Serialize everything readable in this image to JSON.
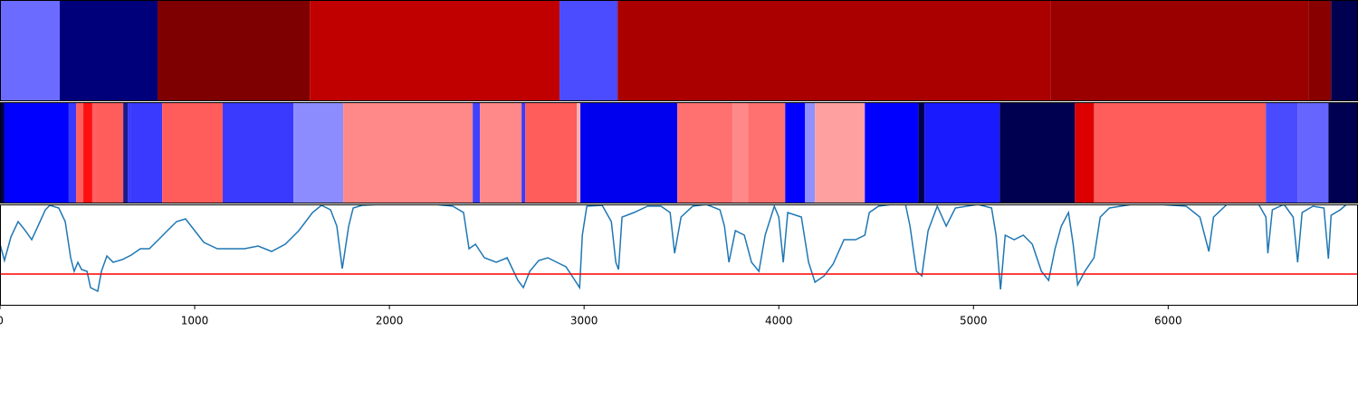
{
  "chart_data": [
    {
      "type": "segments",
      "xlim": [
        0,
        6975
      ],
      "segments": [
        {
          "start": 0,
          "end": 307,
          "color": "#6b6bff"
        },
        {
          "start": 307,
          "end": 809,
          "color": "#00007a"
        },
        {
          "start": 809,
          "end": 1591,
          "color": "#7f0000"
        },
        {
          "start": 1591,
          "end": 2874,
          "color": "#c00000"
        },
        {
          "start": 2874,
          "end": 3172,
          "color": "#4b4bff"
        },
        {
          "start": 3172,
          "end": 5395,
          "color": "#aa0000"
        },
        {
          "start": 5395,
          "end": 6721,
          "color": "#9a0000"
        },
        {
          "start": 6721,
          "end": 6837,
          "color": "#880000"
        },
        {
          "start": 6837,
          "end": 6975,
          "color": "#000050"
        }
      ]
    },
    {
      "type": "segments",
      "xlim": [
        0,
        6975
      ],
      "segments": [
        {
          "start": 0,
          "end": 23,
          "color": "#000050"
        },
        {
          "start": 23,
          "end": 353,
          "color": "#0000ff"
        },
        {
          "start": 353,
          "end": 391,
          "color": "#3a3aff"
        },
        {
          "start": 391,
          "end": 428,
          "color": "#ff6060"
        },
        {
          "start": 428,
          "end": 474,
          "color": "#ff1010"
        },
        {
          "start": 474,
          "end": 493,
          "color": "#ff6060"
        },
        {
          "start": 493,
          "end": 633,
          "color": "#ff5c5c"
        },
        {
          "start": 633,
          "end": 656,
          "color": "#1a1a8a"
        },
        {
          "start": 656,
          "end": 674,
          "color": "#3a3aff"
        },
        {
          "start": 674,
          "end": 833,
          "color": "#3a3aff"
        },
        {
          "start": 833,
          "end": 1144,
          "color": "#ff5c5c"
        },
        {
          "start": 1144,
          "end": 1507,
          "color": "#3a3aff"
        },
        {
          "start": 1507,
          "end": 1763,
          "color": "#8c8cff"
        },
        {
          "start": 1763,
          "end": 2428,
          "color": "#ff8888"
        },
        {
          "start": 2428,
          "end": 2465,
          "color": "#4040ff"
        },
        {
          "start": 2465,
          "end": 2679,
          "color": "#ff8888"
        },
        {
          "start": 2679,
          "end": 2698,
          "color": "#3a3aff"
        },
        {
          "start": 2698,
          "end": 2963,
          "color": "#ff5c5c"
        },
        {
          "start": 2963,
          "end": 2981,
          "color": "#ffb0b0"
        },
        {
          "start": 2981,
          "end": 3479,
          "color": "#0000ee"
        },
        {
          "start": 3479,
          "end": 3763,
          "color": "#ff7070"
        },
        {
          "start": 3763,
          "end": 3842,
          "color": "#ff8888"
        },
        {
          "start": 3842,
          "end": 4033,
          "color": "#ff7070"
        },
        {
          "start": 4033,
          "end": 4135,
          "color": "#0000ff"
        },
        {
          "start": 4135,
          "end": 4186,
          "color": "#9090ff"
        },
        {
          "start": 4186,
          "end": 4442,
          "color": "#ffa0a0"
        },
        {
          "start": 4442,
          "end": 4716,
          "color": "#0000ff"
        },
        {
          "start": 4716,
          "end": 4749,
          "color": "#000050"
        },
        {
          "start": 4749,
          "end": 5135,
          "color": "#1a1aff"
        },
        {
          "start": 5135,
          "end": 5521,
          "color": "#000050"
        },
        {
          "start": 5521,
          "end": 5619,
          "color": "#dd0000"
        },
        {
          "start": 5619,
          "end": 6502,
          "color": "#ff5c5c"
        },
        {
          "start": 6502,
          "end": 6665,
          "color": "#4a4aff"
        },
        {
          "start": 6665,
          "end": 6823,
          "color": "#6666ff"
        },
        {
          "start": 6823,
          "end": 6975,
          "color": "#000050"
        }
      ]
    },
    {
      "type": "line",
      "xlim": [
        0,
        6975
      ],
      "ylim": [
        0,
        112
      ],
      "color": "#1f77b4",
      "threshold": {
        "value": 35,
        "color": "#ff0000"
      },
      "xticks": [
        0,
        1000,
        2000,
        3000,
        4000,
        5000,
        6000
      ],
      "x": [
        0,
        23,
        56,
        93,
        130,
        163,
        195,
        233,
        256,
        302,
        335,
        363,
        381,
        400,
        419,
        447,
        465,
        502,
        521,
        549,
        581,
        628,
        674,
        721,
        767,
        814,
        860,
        907,
        953,
        1000,
        1047,
        1116,
        1186,
        1256,
        1326,
        1395,
        1465,
        1535,
        1605,
        1651,
        1698,
        1730,
        1758,
        1791,
        1814,
        1860,
        1953,
        2093,
        2233,
        2326,
        2381,
        2409,
        2442,
        2488,
        2549,
        2605,
        2660,
        2688,
        2721,
        2767,
        2814,
        2860,
        2907,
        2953,
        2977,
        2991,
        3014,
        3093,
        3140,
        3163,
        3177,
        3195,
        3256,
        3326,
        3395,
        3442,
        3465,
        3498,
        3558,
        3628,
        3698,
        3721,
        3744,
        3777,
        3823,
        3860,
        3898,
        3930,
        3977,
        4000,
        4023,
        4046,
        4116,
        4153,
        4186,
        4233,
        4279,
        4335,
        4395,
        4442,
        4465,
        4512,
        4581,
        4651,
        4674,
        4707,
        4735,
        4744,
        4767,
        4814,
        4860,
        4907,
        5023,
        5093,
        5116,
        5139,
        5163,
        5209,
        5256,
        5302,
        5349,
        5386,
        5419,
        5451,
        5488,
        5512,
        5535,
        5572,
        5619,
        5651,
        5698,
        5814,
        5953,
        6093,
        6163,
        6209,
        6233,
        6302,
        6465,
        6502,
        6512,
        6535,
        6595,
        6642,
        6665,
        6688,
        6744,
        6800,
        6823,
        6837,
        6884,
        6916
      ],
      "values": [
        68,
        50,
        76,
        93,
        83,
        73,
        88,
        106,
        111,
        108,
        93,
        53,
        38,
        48,
        40,
        38,
        20,
        16,
        38,
        55,
        48,
        51,
        56,
        63,
        63,
        73,
        83,
        93,
        96,
        83,
        70,
        63,
        63,
        63,
        66,
        60,
        68,
        83,
        103,
        111,
        106,
        88,
        41,
        88,
        108,
        111,
        112,
        112,
        112,
        110,
        103,
        63,
        68,
        53,
        48,
        53,
        28,
        20,
        38,
        50,
        53,
        48,
        43,
        28,
        20,
        78,
        110,
        111,
        93,
        48,
        40,
        98,
        103,
        110,
        110,
        103,
        58,
        98,
        110,
        112,
        106,
        88,
        48,
        83,
        78,
        48,
        38,
        78,
        110,
        98,
        48,
        103,
        98,
        48,
        26,
        33,
        46,
        73,
        73,
        78,
        103,
        110,
        112,
        112,
        88,
        38,
        33,
        48,
        83,
        110,
        88,
        108,
        112,
        108,
        78,
        18,
        78,
        73,
        78,
        68,
        38,
        28,
        63,
        88,
        103,
        68,
        23,
        38,
        53,
        98,
        108,
        112,
        112,
        110,
        98,
        60,
        98,
        112,
        112,
        98,
        58,
        106,
        112,
        98,
        48,
        103,
        110,
        108,
        52,
        100,
        106,
        112
      ]
    }
  ]
}
